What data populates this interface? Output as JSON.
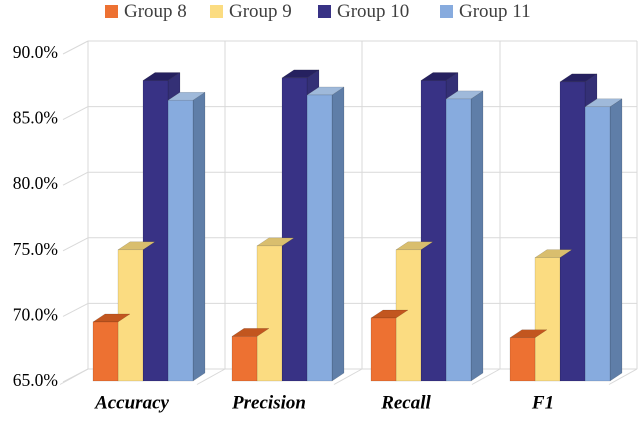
{
  "chart_data": {
    "type": "bar",
    "variant": "3d-clustered-column",
    "title": "",
    "xlabel": "",
    "ylabel": "",
    "categories": [
      "Accuracy",
      "Precision",
      "Recall",
      "F1"
    ],
    "series": [
      {
        "name": "Group 8",
        "color": "#ED7132",
        "color_top": "#C2561F",
        "color_side": "#B54E1E",
        "values": [
          69.5,
          68.4,
          69.8,
          68.3
        ]
      },
      {
        "name": "Group 9",
        "color": "#FBDC81",
        "color_top": "#D9BE6E",
        "color_side": "#C9A75C",
        "values": [
          75.0,
          75.3,
          75.0,
          74.4
        ]
      },
      {
        "name": "Group 10",
        "color": "#383285",
        "color_top": "#262160",
        "color_side": "#343076",
        "values": [
          87.9,
          88.1,
          87.9,
          87.8
        ]
      },
      {
        "name": "Group 11",
        "color": "#87ABDE",
        "color_top": "#9FB9DA",
        "color_side": "#5F7EA8",
        "values": [
          86.4,
          86.8,
          86.5,
          85.9
        ]
      }
    ],
    "ylim": [
      65,
      90
    ],
    "ytick_step": 5,
    "ytick_labels": [
      "90.0%",
      "85.0%",
      "80.0%",
      "75.0%",
      "70.0%",
      "65.0%"
    ],
    "grid": true,
    "legend_position": "top"
  },
  "colors": {
    "background": "#FFFFFF",
    "gridline": "#D9D9D9",
    "axis_text": "#000000",
    "legend_text": "#3F3F3F"
  }
}
